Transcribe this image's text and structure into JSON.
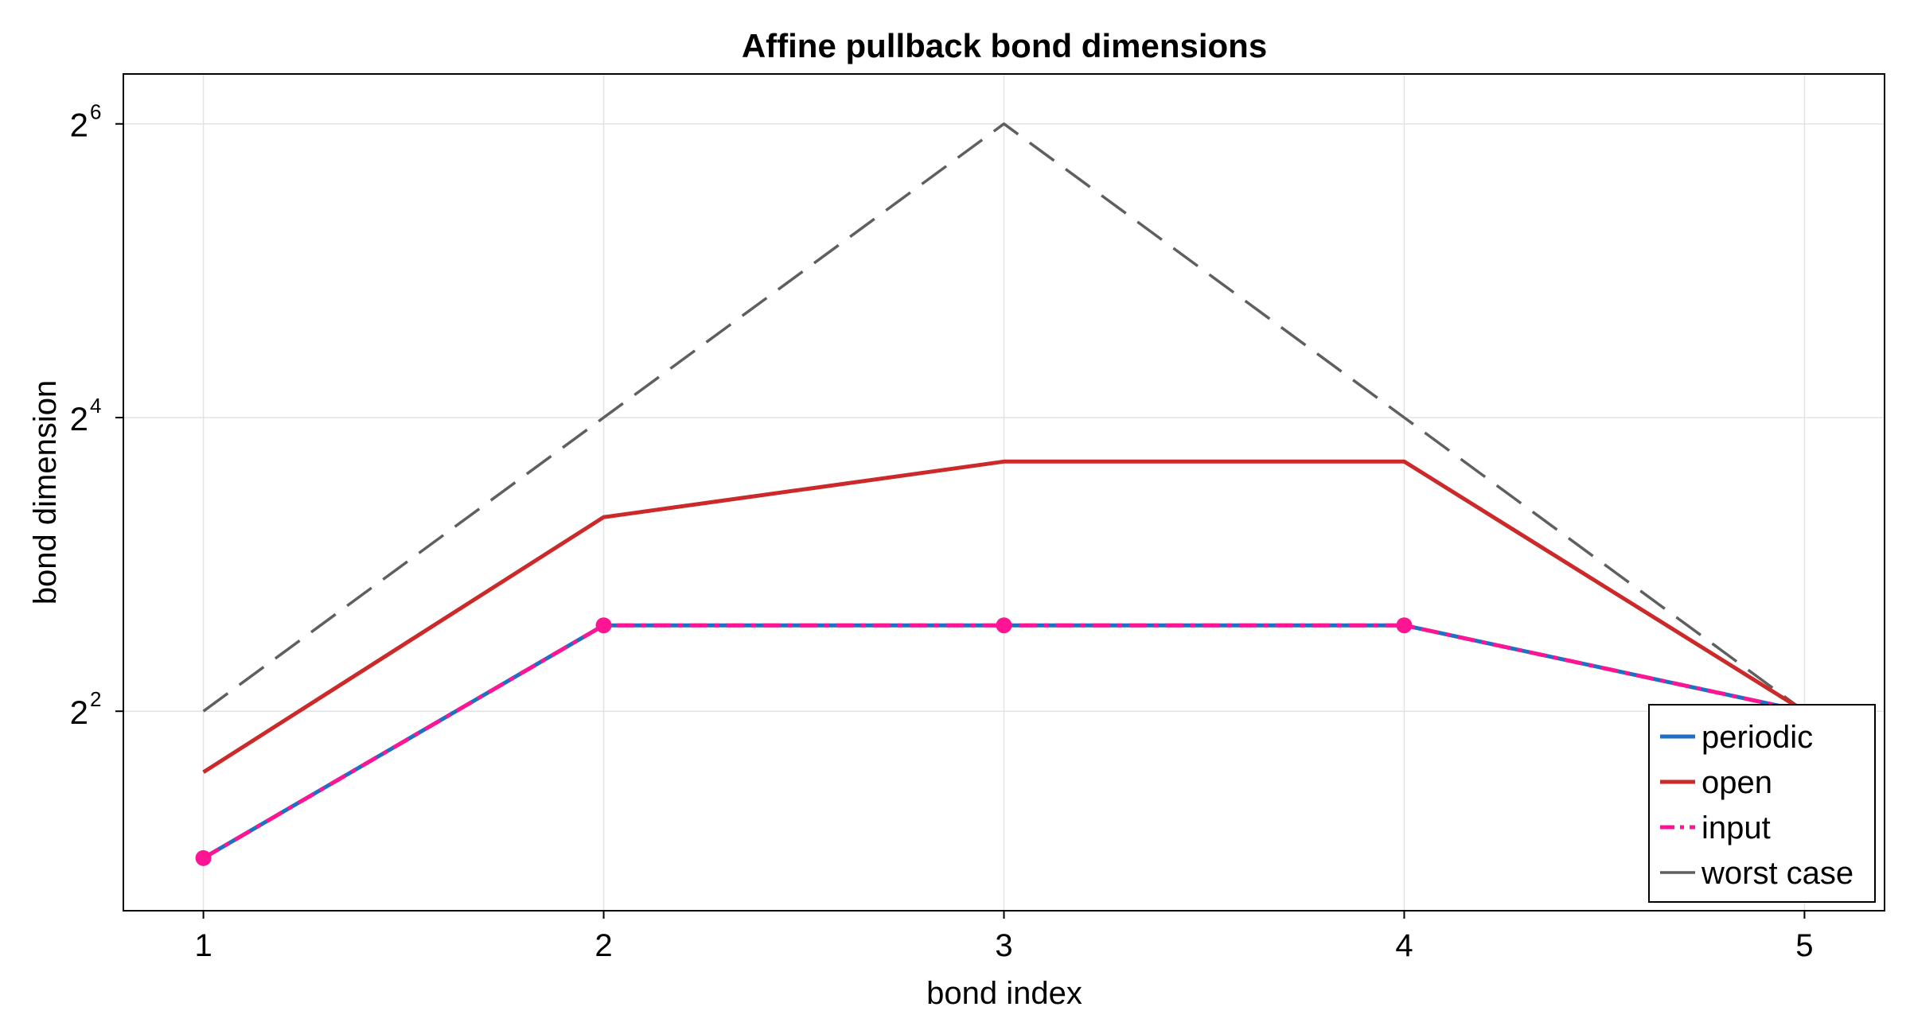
{
  "chart_data": {
    "type": "line",
    "title": "Affine pullback bond dimensions",
    "xlabel": "bond index",
    "ylabel": "bond dimension",
    "x": [
      1,
      2,
      3,
      4,
      5
    ],
    "xlim": [
      0.8,
      5.2
    ],
    "x_ticks": [
      1,
      2,
      3,
      4,
      5
    ],
    "yscale": "log2",
    "ylim": [
      1.56,
      81
    ],
    "y_ticks": [
      {
        "value": 4,
        "base": "2",
        "exp": "2"
      },
      {
        "value": 16,
        "base": "2",
        "exp": "4"
      },
      {
        "value": 64,
        "base": "2",
        "exp": "6"
      }
    ],
    "grid": true,
    "legend_position": "bottom-right",
    "series": [
      {
        "name": "periodic",
        "values": [
          2,
          6,
          6,
          6,
          4
        ],
        "color": "#1f6fc5",
        "style": "solid",
        "markers": false
      },
      {
        "name": "open",
        "values": [
          3,
          10,
          13,
          13,
          4
        ],
        "color": "#cc2a2a",
        "style": "solid",
        "markers": false
      },
      {
        "name": "input",
        "values": [
          2,
          6,
          6,
          6,
          4
        ],
        "color": "#ff1493",
        "style": "dashdot",
        "markers": true
      },
      {
        "name": "worst case",
        "values": [
          4,
          16,
          64,
          16,
          4
        ],
        "color": "#5f5f5f",
        "style": "dash",
        "markers": false
      }
    ]
  }
}
